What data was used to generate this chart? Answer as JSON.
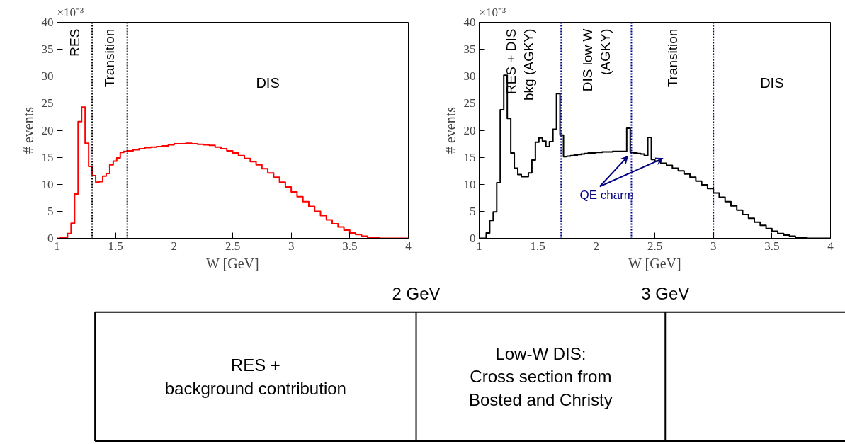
{
  "chart_data": [
    {
      "type": "histogram",
      "xlabel": "W [GeV]",
      "ylabel": "# events",
      "xlim": [
        1,
        4
      ],
      "ylim": [
        0,
        40
      ],
      "xticks": [
        1,
        1.5,
        2,
        2.5,
        3,
        3.5,
        4
      ],
      "yticks": [
        0,
        5,
        10,
        15,
        20,
        25,
        30,
        35,
        40
      ],
      "color": "#ff0000",
      "bins": [
        1.0,
        1.03,
        1.06,
        1.09,
        1.12,
        1.15,
        1.18,
        1.21,
        1.24,
        1.27,
        1.3,
        1.33,
        1.36,
        1.39,
        1.42,
        1.45,
        1.48,
        1.51,
        1.54,
        1.57,
        1.6,
        1.65,
        1.7,
        1.75,
        1.8,
        1.85,
        1.9,
        1.95,
        2.0,
        2.05,
        2.1,
        2.15,
        2.2,
        2.25,
        2.3,
        2.35,
        2.4,
        2.45,
        2.5,
        2.55,
        2.6,
        2.65,
        2.7,
        2.75,
        2.8,
        2.85,
        2.9,
        2.95,
        3.0,
        3.05,
        3.1,
        3.15,
        3.2,
        3.25,
        3.3,
        3.35,
        3.4,
        3.45,
        3.5,
        3.55,
        3.6,
        3.65,
        3.7,
        3.75,
        3.8,
        3.85,
        3.9,
        3.95,
        4.0
      ],
      "values": [
        0,
        0.2,
        0.2,
        0.9,
        2.8,
        8.2,
        21.6,
        24.3,
        17.6,
        13.3,
        11.6,
        10.4,
        10.5,
        11.5,
        12.0,
        13.6,
        14.3,
        14.9,
        15.9,
        16.1,
        16.2,
        16.4,
        16.6,
        16.8,
        16.9,
        17.0,
        17.1,
        17.3,
        17.5,
        17.5,
        17.6,
        17.5,
        17.4,
        17.3,
        17.2,
        16.9,
        16.6,
        16.2,
        15.8,
        15.3,
        14.8,
        14.2,
        13.6,
        12.9,
        12.1,
        11.3,
        10.4,
        9.5,
        8.6,
        7.7,
        6.8,
        5.9,
        5.0,
        4.2,
        3.4,
        2.7,
        2.1,
        1.5,
        1.0,
        0.7,
        0.4,
        0.2,
        0.1,
        0,
        0,
        0,
        0,
        0
      ],
      "ref_lines": [
        {
          "axis": "x",
          "value": 1.3,
          "color": "#000000",
          "line_style": "dotted"
        },
        {
          "axis": "x",
          "value": 1.6,
          "color": "#000000",
          "line_style": "dotted"
        }
      ],
      "annotations": [
        "×10⁻³",
        "RES",
        "Transition",
        "DIS"
      ]
    },
    {
      "type": "histogram",
      "xlabel": "W [GeV]",
      "ylabel": "# events",
      "xlim": [
        1,
        4
      ],
      "ylim": [
        0,
        40
      ],
      "xticks": [
        1,
        1.5,
        2,
        2.5,
        3,
        3.5,
        4
      ],
      "yticks": [
        0,
        5,
        10,
        15,
        20,
        25,
        30,
        35,
        40
      ],
      "color": "#000000",
      "bins": [
        1.0,
        1.03,
        1.06,
        1.09,
        1.12,
        1.15,
        1.18,
        1.21,
        1.24,
        1.27,
        1.3,
        1.33,
        1.36,
        1.39,
        1.42,
        1.45,
        1.48,
        1.51,
        1.54,
        1.57,
        1.6,
        1.63,
        1.66,
        1.69,
        1.72,
        1.75,
        1.78,
        1.81,
        1.84,
        1.87,
        1.9,
        1.93,
        1.96,
        1.99,
        2.02,
        2.05,
        2.08,
        2.11,
        2.14,
        2.17,
        2.2,
        2.23,
        2.26,
        2.29,
        2.32,
        2.35,
        2.38,
        2.41,
        2.44,
        2.47,
        2.5,
        2.55,
        2.6,
        2.65,
        2.7,
        2.75,
        2.8,
        2.85,
        2.9,
        2.95,
        3.0,
        3.05,
        3.1,
        3.15,
        3.2,
        3.25,
        3.3,
        3.35,
        3.4,
        3.45,
        3.5,
        3.55,
        3.6,
        3.65,
        3.7,
        3.75,
        3.8,
        3.85,
        3.9,
        3.95,
        4.0
      ],
      "values": [
        0,
        0,
        1.0,
        3.3,
        4.9,
        10.3,
        23.8,
        30.2,
        22.2,
        15.8,
        13.0,
        11.8,
        11.4,
        11.4,
        12.1,
        14.5,
        17.8,
        18.6,
        18.0,
        17.0,
        17.9,
        20.2,
        26.8,
        19.1,
        15.1,
        15.2,
        15.3,
        15.4,
        15.5,
        15.6,
        15.7,
        15.8,
        15.8,
        15.9,
        15.9,
        16.0,
        16.0,
        16.0,
        16.1,
        16.1,
        16.1,
        16.1,
        20.4,
        15.9,
        15.8,
        15.7,
        15.6,
        15.3,
        18.7,
        14.6,
        14.3,
        13.9,
        13.5,
        13.0,
        12.5,
        11.9,
        11.3,
        10.6,
        9.9,
        9.2,
        8.4,
        7.6,
        6.8,
        6.0,
        5.2,
        4.4,
        3.7,
        3.0,
        2.4,
        1.8,
        1.3,
        0.9,
        0.6,
        0.4,
        0.2,
        0.1,
        0,
        0,
        0,
        0
      ],
      "ref_lines": [
        {
          "axis": "x",
          "value": 1.7,
          "color": "#00008b",
          "line_style": "dotted"
        },
        {
          "axis": "x",
          "value": 2.3,
          "color": "#00008b",
          "line_style": "dotted"
        },
        {
          "axis": "x",
          "value": 3.0,
          "color": "#00008b",
          "line_style": "dotted"
        }
      ],
      "annotations": [
        "×10⁻³",
        "RES + DIS\nbkg (AGKY)",
        "DIS low W\n(AGKY)",
        "Transition",
        "DIS",
        "QE charm"
      ]
    },
    {
      "type": "other",
      "categories": [
        "RES +\nbackground contribution",
        "Low-W DIS:\nCross section from\nBosted and Christy",
        null
      ],
      "annotations": [
        "2 GeV",
        "3 GeV"
      ]
    }
  ]
}
